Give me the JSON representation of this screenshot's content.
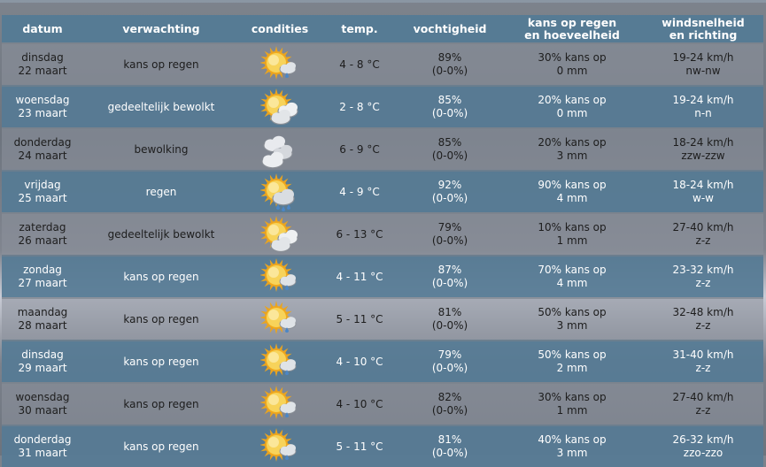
{
  "headers": {
    "datum": "datum",
    "verwachting": "verwachting",
    "condities": "condities",
    "temp": "temp.",
    "vocht": "vochtigheid",
    "regen1": "kans op regen",
    "regen2": "en hoeveelheid",
    "wind1": "windsnelheid",
    "wind2": "en richting"
  },
  "rows": [
    {
      "day": "dinsdag",
      "date": "22 maart",
      "forecast": "kans op regen",
      "icon": "sun-cloud-rain-icon",
      "temp": "4 - 8 °C",
      "hum": "89%",
      "humr": "(0-0%)",
      "rain": "30% kans op",
      "mm": "0 mm",
      "wind": "19-24 km/h",
      "dir": "nw-nw"
    },
    {
      "day": "woensdag",
      "date": "23 maart",
      "forecast": "gedeeltelijk bewolkt",
      "icon": "sun-clouds-icon",
      "temp": "2 - 8 °C",
      "hum": "85%",
      "humr": "(0-0%)",
      "rain": "20% kans op",
      "mm": "0 mm",
      "wind": "19-24 km/h",
      "dir": "n-n"
    },
    {
      "day": "donderdag",
      "date": "24 maart",
      "forecast": "bewolking",
      "icon": "clouds-icon",
      "temp": "6 - 9 °C",
      "hum": "85%",
      "humr": "(0-0%)",
      "rain": "20% kans op",
      "mm": "3 mm",
      "wind": "18-24 km/h",
      "dir": "zzw-zzw"
    },
    {
      "day": "vrijdag",
      "date": "25 maart",
      "forecast": "regen",
      "icon": "sun-rain-icon",
      "temp": "4 - 9 °C",
      "hum": "92%",
      "humr": "(0-0%)",
      "rain": "90% kans op",
      "mm": "4 mm",
      "wind": "18-24 km/h",
      "dir": "w-w"
    },
    {
      "day": "zaterdag",
      "date": "26 maart",
      "forecast": "gedeeltelijk bewolkt",
      "icon": "sun-clouds-icon",
      "temp": "6 - 13 °C",
      "hum": "79%",
      "humr": "(0-0%)",
      "rain": "10% kans op",
      "mm": "1 mm",
      "wind": "27-40 km/h",
      "dir": "z-z"
    },
    {
      "day": "zondag",
      "date": "27 maart",
      "forecast": "kans op regen",
      "icon": "sun-cloud-rain-icon",
      "temp": "4 - 11 °C",
      "hum": "87%",
      "humr": "(0-0%)",
      "rain": "70% kans op",
      "mm": "4 mm",
      "wind": "23-32 km/h",
      "dir": "z-z"
    },
    {
      "day": "maandag",
      "date": "28 maart",
      "forecast": "kans op regen",
      "icon": "sun-cloud-rain-icon",
      "temp": "5 - 11 °C",
      "hum": "81%",
      "humr": "(0-0%)",
      "rain": "50% kans op",
      "mm": "3 mm",
      "wind": "32-48 km/h",
      "dir": "z-z"
    },
    {
      "day": "dinsdag",
      "date": "29 maart",
      "forecast": "kans op regen",
      "icon": "sun-cloud-rain-icon",
      "temp": "4 - 10 °C",
      "hum": "79%",
      "humr": "(0-0%)",
      "rain": "50% kans op",
      "mm": "2 mm",
      "wind": "31-40 km/h",
      "dir": "z-z"
    },
    {
      "day": "woensdag",
      "date": "30 maart",
      "forecast": "kans op regen",
      "icon": "sun-cloud-rain-icon",
      "temp": "4 - 10 °C",
      "hum": "82%",
      "humr": "(0-0%)",
      "rain": "30% kans op",
      "mm": "1 mm",
      "wind": "27-40 km/h",
      "dir": "z-z"
    },
    {
      "day": "donderdag",
      "date": "31 maart",
      "forecast": "kans op regen",
      "icon": "sun-cloud-rain-icon",
      "temp": "5 - 11 °C",
      "hum": "81%",
      "humr": "(0-0%)",
      "rain": "40% kans op",
      "mm": "3 mm",
      "wind": "26-32 km/h",
      "dir": "zzo-zzo"
    }
  ]
}
